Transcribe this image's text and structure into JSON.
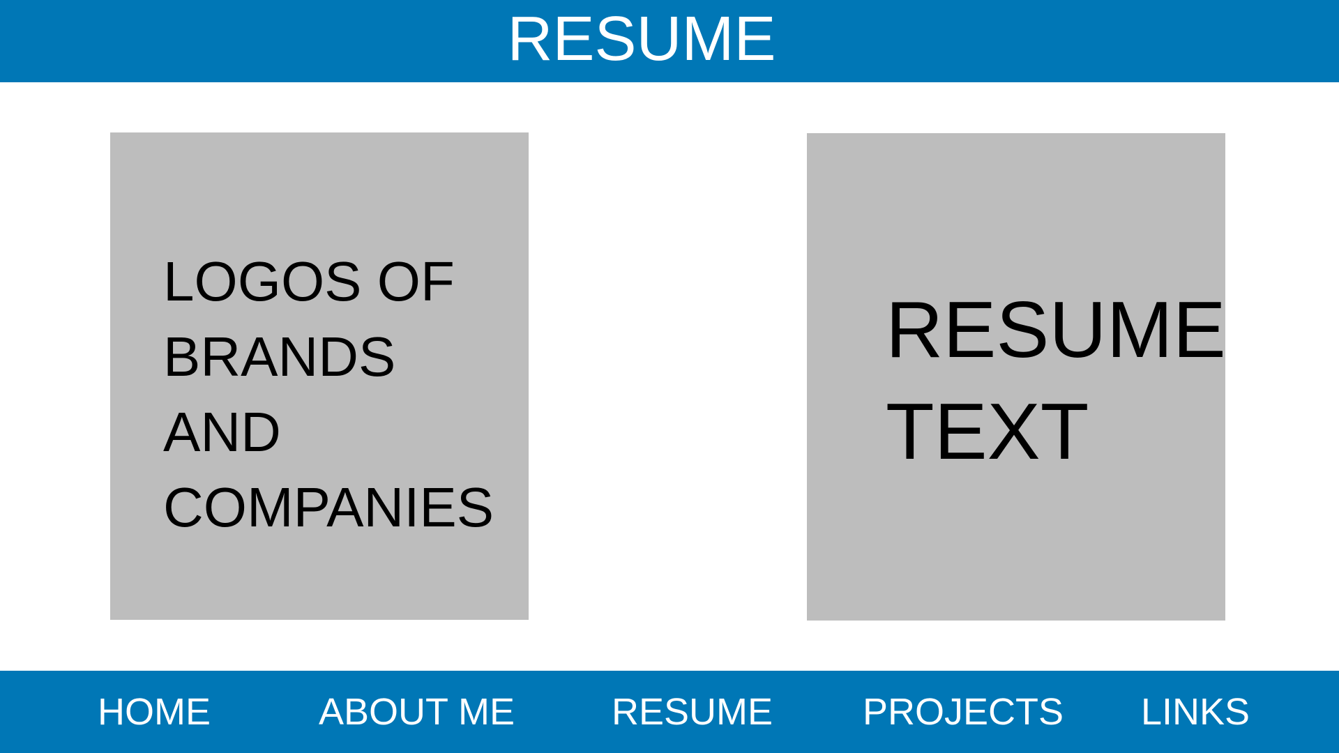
{
  "header": {
    "title": "RESUME",
    "background_color": "#0077b6"
  },
  "main": {
    "left_panel": {
      "text": "LOGOS OF\nBRANDS\nAND\nCOMPANIES"
    },
    "right_panel": {
      "text": "RESUME\nTEXT"
    },
    "panel_color": "#bdbdbd"
  },
  "nav": {
    "items": [
      {
        "label": "HOME"
      },
      {
        "label": "ABOUT ME"
      },
      {
        "label": "RESUME"
      },
      {
        "label": "PROJECTS"
      },
      {
        "label": "LINKS"
      }
    ],
    "background_color": "#0077b6",
    "text_color": "#ffffff"
  }
}
